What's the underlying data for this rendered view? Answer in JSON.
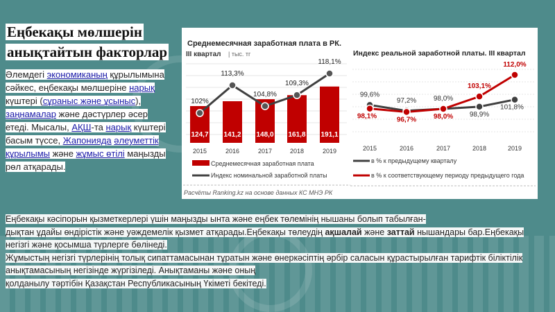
{
  "slide": {
    "title_line1": "Еңбекақы мөлшерін",
    "title_line2": "анықтайтын факторлар",
    "paragraph": [
      [
        {
          "t": "Әлемдегі "
        },
        {
          "t": "экономиканың",
          "link": true
        },
        {
          "t": " құрылымына"
        }
      ],
      [
        {
          "t": "сәйкес, еңбекақы мөлшеріне "
        },
        {
          "t": "нарық",
          "link": true
        }
      ],
      [
        {
          "t": "күштері ("
        },
        {
          "t": "сұраныс және ұсыныс",
          "link": true
        },
        {
          "t": "),"
        }
      ],
      [
        {
          "t": "заңнамалар",
          "link": true
        },
        {
          "t": " және дәстүрлер әсер"
        }
      ],
      [
        {
          "t": "етеді. Мысалы, "
        },
        {
          "t": "АҚШ",
          "link": true
        },
        {
          "t": "-та "
        },
        {
          "t": "нарық",
          "link": true
        },
        {
          "t": " күштері"
        }
      ],
      [
        {
          "t": "басым түссе, "
        },
        {
          "t": "Жапонияда",
          "link": true
        },
        {
          "t": " "
        },
        {
          "t": "әлеуметтік",
          "link": true
        }
      ],
      [
        {
          "t": "құрылымы",
          "link": true
        },
        {
          "t": " және "
        },
        {
          "t": "жұмыс өтілі",
          "link": true
        },
        {
          "t": " маңызды"
        }
      ],
      [
        {
          "t": "рөл атқарады."
        }
      ]
    ],
    "bottom_lines": [
      [
        {
          "t": "Еңбекақы кәсіпорын қызметкерлері үшін маңызды ынта және еңбек төлемінің нышаны болып табылған-"
        }
      ],
      [
        {
          "t": "дықтан ұдайы өндірістік және уәждемелік қызмет атқарады.Еңбекақы төлеудің "
        },
        {
          "t": "ақшалай",
          "b": true
        },
        {
          "t": " және "
        },
        {
          "t": "заттай",
          "b": true
        },
        {
          "t": " нышандары бар.Еңбекақы"
        }
      ],
      [
        {
          "t": "негізгі және қосымша түрлерге бөлінеді."
        }
      ],
      [
        {
          "t": "Жұмыстың негізгі түрлерінің толық сипаттамасынан тұратын және өнеркәсіптің әрбір саласын құрастырылған тарифтік біліктілік"
        }
      ],
      [
        {
          "t": "анықтамасының негізінде жүргізіледі. Анықтаманы және оның"
        }
      ],
      [
        {
          "t": "қолданылу тәртібін Қазақстан Республикасының Үкіметі бекітеді."
        }
      ]
    ]
  },
  "chart_data": [
    {
      "type": "bar",
      "title": "Среднемесячная заработная плата в РК.",
      "subtitle": "III квартал",
      "unit": "| тыс. тг",
      "categories": [
        "2015",
        "2016",
        "2017",
        "2018",
        "2019"
      ],
      "series": [
        {
          "name": "Среднемесячная заработная плата",
          "kind": "bar",
          "color": "#c00000",
          "values": [
            124.7,
            141.2,
            148.0,
            161.8,
            191.1
          ],
          "labels": [
            "124,7",
            "141,2",
            "148,0",
            "161,8",
            "191,1"
          ]
        },
        {
          "name": "Индекс номинальной заработной платы",
          "kind": "line",
          "color": "#404040",
          "values": [
            102,
            113.3,
            104.8,
            109.3,
            118.1
          ],
          "labels": [
            "102%",
            "113,3%",
            "104,8%",
            "109,3%",
            "118,1%"
          ]
        }
      ],
      "grid": true,
      "legend": "bottom",
      "source": "Расчёты Ranking.kz на основе данных КС МНЭ РК"
    },
    {
      "type": "line",
      "title": "Индекс реальной заработной платы.  III квартал",
      "categories": [
        "2015",
        "2016",
        "2017",
        "2018",
        "2019"
      ],
      "series": [
        {
          "name": "в % к предыдущему кварталу",
          "color": "#404040",
          "values": [
            99.6,
            97.2,
            98.0,
            98.9,
            101.8
          ],
          "labels": [
            "99,6%",
            "97,2%",
            "98,0%",
            "98,9%",
            "101,8%"
          ]
        },
        {
          "name": "в % к соответствующему периоду предыдущего года",
          "color": "#c00000",
          "values": [
            98.1,
            96.7,
            98.0,
            103.1,
            112.0
          ],
          "labels": [
            "98,1%",
            "96,7%",
            "98,0%",
            "103,1%",
            "112,0%"
          ]
        }
      ],
      "grid": true,
      "legend": "bottom"
    }
  ]
}
